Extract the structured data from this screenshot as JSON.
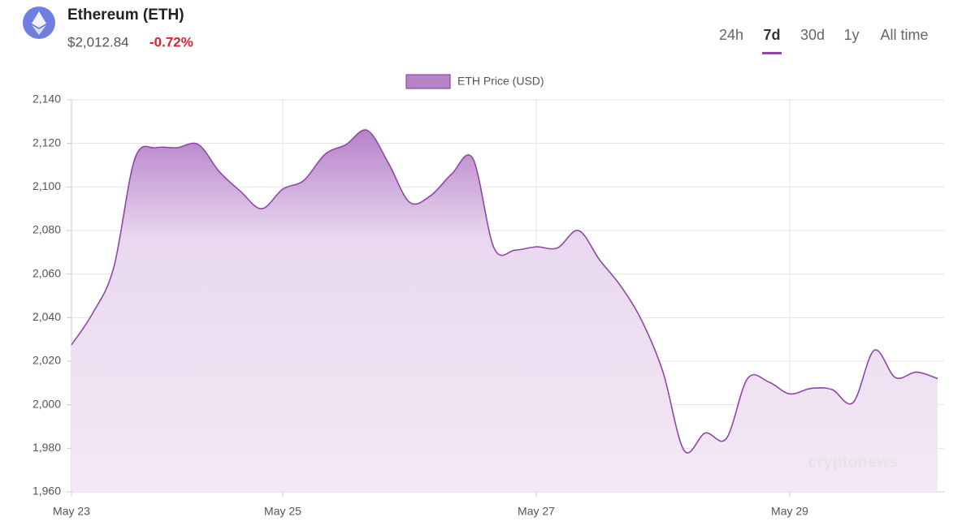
{
  "header": {
    "title": "Ethereum (ETH)",
    "price": "$2,012.84",
    "change": "-0.72%",
    "tabs": [
      {
        "label": "24h",
        "active": false
      },
      {
        "label": "7d",
        "active": true
      },
      {
        "label": "30d",
        "active": false
      },
      {
        "label": "1y",
        "active": false
      },
      {
        "label": "All time",
        "active": false
      }
    ]
  },
  "watermark": "cryptonews",
  "chart_data": {
    "type": "area",
    "categories": [
      "May 23",
      null,
      null,
      null,
      null,
      null,
      null,
      null,
      null,
      null,
      "May 25",
      null,
      null,
      null,
      null,
      null,
      null,
      null,
      null,
      null,
      null,
      null,
      "May 27",
      null,
      null,
      null,
      null,
      null,
      null,
      null,
      null,
      null,
      null,
      null,
      "May 29",
      null,
      null,
      null,
      null,
      null,
      null,
      null
    ],
    "series": [
      {
        "name": "ETH Price (USD)",
        "color": "#9246a8",
        "values": [
          2027.5,
          2042,
          2063,
          2113,
          2118,
          2118,
          2119.5,
          2107,
          2098,
          2090,
          2099,
          2103,
          2115,
          2119.5,
          2126,
          2111,
          2093,
          2096,
          2106,
          2113,
          2072,
          2071,
          2072.5,
          2072,
          2080,
          2066.5,
          2054.5,
          2038.5,
          2015,
          1979,
          1987,
          1984.5,
          2012,
          2010.5,
          2005,
          2007.5,
          2007,
          2001,
          2025,
          2012.5,
          2015,
          2012
        ]
      }
    ],
    "ylim": [
      1960,
      2140
    ],
    "yticks": [
      {
        "value": 1960,
        "label": "1,960"
      },
      {
        "value": 1980,
        "label": "1,980"
      },
      {
        "value": 2000,
        "label": "2,000"
      },
      {
        "value": 2020,
        "label": "2,020"
      },
      {
        "value": 2040,
        "label": "2,040"
      },
      {
        "value": 2060,
        "label": "2,060"
      },
      {
        "value": 2080,
        "label": "2,080"
      },
      {
        "value": 2100,
        "label": "2,100"
      },
      {
        "value": 2120,
        "label": "2,120"
      },
      {
        "value": 2140,
        "label": "2,140"
      }
    ],
    "grid": true
  }
}
